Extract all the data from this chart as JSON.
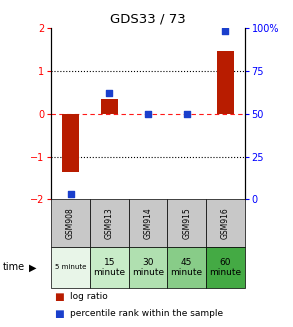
{
  "title": "GDS33 / 73",
  "samples": [
    "GSM908",
    "GSM913",
    "GSM914",
    "GSM915",
    "GSM916"
  ],
  "time_labels": [
    "5 minute",
    "15\nminute",
    "30\nminute",
    "45\nminute",
    "60\nminute"
  ],
  "time_colors": [
    "#e8f5e8",
    "#c8ecc8",
    "#b0e0b0",
    "#88cc88",
    "#44aa44"
  ],
  "log_ratio": [
    -1.35,
    0.35,
    0.0,
    0.0,
    1.45
  ],
  "percentile_rank": [
    3,
    62,
    50,
    50,
    98
  ],
  "bar_color": "#b81c00",
  "dot_color": "#1a3fcc",
  "ylim_left": [
    -2,
    2
  ],
  "ylim_right": [
    0,
    100
  ],
  "yticks_left": [
    -2,
    -1,
    0,
    1,
    2
  ],
  "yticks_right": [
    0,
    25,
    50,
    75,
    100
  ],
  "gray_color": "#c8c8c8",
  "background_color": "#ffffff"
}
